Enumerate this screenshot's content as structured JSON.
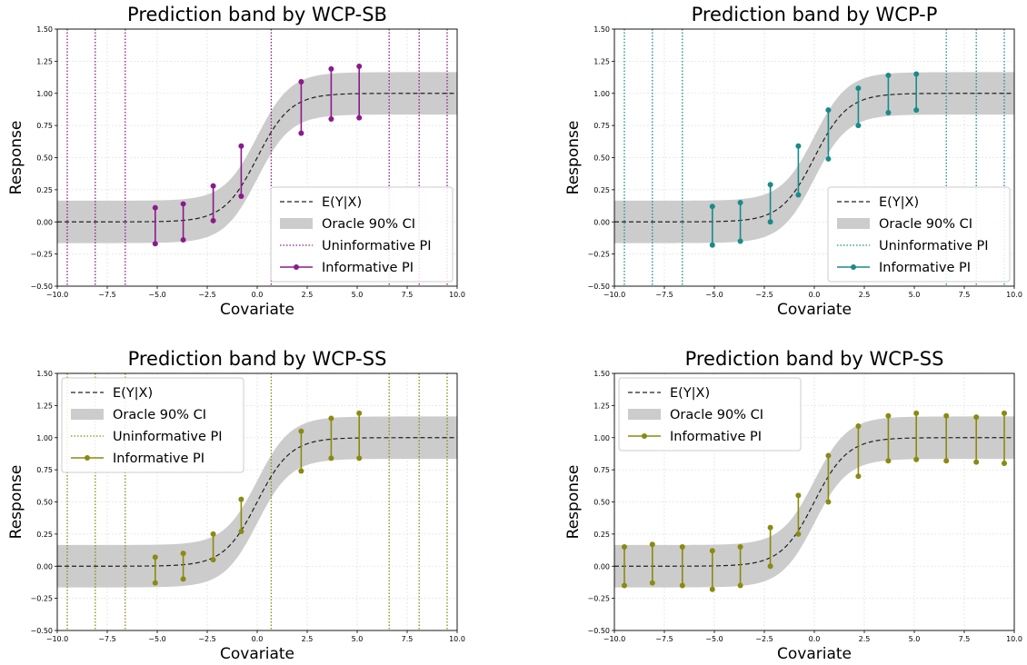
{
  "chart_data": [
    {
      "type": "line",
      "title": "Prediction band by WCP-SB",
      "xlabel": "Covariate",
      "ylabel": "Response",
      "xlim": [
        -10,
        10
      ],
      "ylim": [
        -0.5,
        1.5
      ],
      "xticks": [
        "−10.0",
        "−7.5",
        "−5.0",
        "−2.5",
        "0.0",
        "2.5",
        "5.0",
        "7.5",
        "10.0"
      ],
      "yticks": [
        "−0.50",
        "−0.25",
        "0.00",
        "0.25",
        "0.50",
        "0.75",
        "1.00",
        "1.25",
        "1.50"
      ],
      "grid": true,
      "pi_color": "#8B1A8B",
      "legend": {
        "position": "lower right",
        "entries": [
          "E(Y|X)",
          "Oracle 90% CI",
          "Uninformative PI",
          "Informative PI"
        ]
      },
      "uninformative_x": [
        -9.5,
        -8.1,
        -6.6,
        0.7,
        6.6,
        8.1,
        9.5
      ],
      "informative_pi": [
        {
          "x": -5.1,
          "lower": -0.17,
          "upper": 0.11
        },
        {
          "x": -3.7,
          "lower": -0.14,
          "upper": 0.14
        },
        {
          "x": -2.2,
          "lower": 0.01,
          "upper": 0.28
        },
        {
          "x": -0.8,
          "lower": 0.2,
          "upper": 0.59
        },
        {
          "x": 2.2,
          "lower": 0.69,
          "upper": 1.09
        },
        {
          "x": 3.7,
          "lower": 0.8,
          "upper": 1.19
        },
        {
          "x": 5.1,
          "lower": 0.81,
          "upper": 1.21
        }
      ]
    },
    {
      "type": "line",
      "title": "Prediction band by WCP-P",
      "xlabel": "Covariate",
      "ylabel": "Response",
      "xlim": [
        -10,
        10
      ],
      "ylim": [
        -0.5,
        1.5
      ],
      "xticks": [
        "−10.0",
        "−7.5",
        "−5.0",
        "−2.5",
        "0.0",
        "2.5",
        "5.0",
        "7.5",
        "10.0"
      ],
      "yticks": [
        "−0.50",
        "−0.25",
        "0.00",
        "0.25",
        "0.50",
        "0.75",
        "1.00",
        "1.25",
        "1.50"
      ],
      "grid": true,
      "pi_color": "#1A8A8A",
      "legend": {
        "position": "lower right",
        "entries": [
          "E(Y|X)",
          "Oracle 90% CI",
          "Uninformative PI",
          "Informative PI"
        ]
      },
      "uninformative_x": [
        -9.5,
        -8.1,
        -6.6,
        6.6,
        8.1,
        9.5
      ],
      "informative_pi": [
        {
          "x": -5.1,
          "lower": -0.18,
          "upper": 0.12
        },
        {
          "x": -3.7,
          "lower": -0.15,
          "upper": 0.15
        },
        {
          "x": -2.2,
          "lower": 0.0,
          "upper": 0.29
        },
        {
          "x": -0.8,
          "lower": 0.21,
          "upper": 0.59
        },
        {
          "x": 0.7,
          "lower": 0.49,
          "upper": 0.87
        },
        {
          "x": 2.2,
          "lower": 0.75,
          "upper": 1.04
        },
        {
          "x": 3.7,
          "lower": 0.85,
          "upper": 1.14
        },
        {
          "x": 5.1,
          "lower": 0.87,
          "upper": 1.15
        }
      ]
    },
    {
      "type": "line",
      "title": "Prediction band by WCP-SS",
      "xlabel": "Covariate",
      "ylabel": "Response",
      "xlim": [
        -10,
        10
      ],
      "ylim": [
        -0.5,
        1.5
      ],
      "xticks": [
        "−10.0",
        "−7.5",
        "−5.0",
        "−2.5",
        "0.0",
        "2.5",
        "5.0",
        "7.5",
        "10.0"
      ],
      "yticks": [
        "−0.50",
        "−0.25",
        "0.00",
        "0.25",
        "0.50",
        "0.75",
        "1.00",
        "1.25",
        "1.50"
      ],
      "grid": true,
      "pi_color": "#8A8A10",
      "legend": {
        "position": "upper left",
        "entries": [
          "E(Y|X)",
          "Oracle 90% CI",
          "Uninformative PI",
          "Informative PI"
        ]
      },
      "uninformative_x": [
        -9.5,
        -8.1,
        -6.6,
        0.7,
        6.6,
        8.1,
        9.5
      ],
      "informative_pi": [
        {
          "x": -5.1,
          "lower": -0.13,
          "upper": 0.07
        },
        {
          "x": -3.7,
          "lower": -0.1,
          "upper": 0.1
        },
        {
          "x": -2.2,
          "lower": 0.05,
          "upper": 0.25
        },
        {
          "x": -0.8,
          "lower": 0.27,
          "upper": 0.52
        },
        {
          "x": 2.2,
          "lower": 0.74,
          "upper": 1.05
        },
        {
          "x": 3.7,
          "lower": 0.84,
          "upper": 1.15
        },
        {
          "x": 5.1,
          "lower": 0.84,
          "upper": 1.19
        }
      ]
    },
    {
      "type": "line",
      "title": "Prediction band by WCP-SS",
      "xlabel": "Covariate",
      "ylabel": "Response",
      "xlim": [
        -10,
        10
      ],
      "ylim": [
        -0.5,
        1.5
      ],
      "xticks": [
        "−10.0",
        "−7.5",
        "−5.0",
        "−2.5",
        "0.0",
        "2.5",
        "5.0",
        "7.5",
        "10.0"
      ],
      "yticks": [
        "−0.50",
        "−0.25",
        "0.00",
        "0.25",
        "0.50",
        "0.75",
        "1.00",
        "1.25",
        "1.50"
      ],
      "grid": true,
      "pi_color": "#8A8A10",
      "legend": {
        "position": "upper left",
        "entries": [
          "E(Y|X)",
          "Oracle 90% CI",
          "Informative PI"
        ]
      },
      "uninformative_x": [],
      "informative_pi": [
        {
          "x": -9.5,
          "lower": -0.15,
          "upper": 0.15
        },
        {
          "x": -8.1,
          "lower": -0.13,
          "upper": 0.17
        },
        {
          "x": -6.6,
          "lower": -0.15,
          "upper": 0.15
        },
        {
          "x": -5.1,
          "lower": -0.18,
          "upper": 0.12
        },
        {
          "x": -3.7,
          "lower": -0.15,
          "upper": 0.15
        },
        {
          "x": -2.2,
          "lower": 0.0,
          "upper": 0.3
        },
        {
          "x": -0.8,
          "lower": 0.25,
          "upper": 0.55
        },
        {
          "x": 0.7,
          "lower": 0.5,
          "upper": 0.86
        },
        {
          "x": 2.2,
          "lower": 0.7,
          "upper": 1.09
        },
        {
          "x": 3.7,
          "lower": 0.82,
          "upper": 1.17
        },
        {
          "x": 5.1,
          "lower": 0.83,
          "upper": 1.19
        },
        {
          "x": 6.6,
          "lower": 0.82,
          "upper": 1.17
        },
        {
          "x": 8.1,
          "lower": 0.81,
          "upper": 1.16
        },
        {
          "x": 9.5,
          "lower": 0.8,
          "upper": 1.19
        }
      ]
    }
  ]
}
